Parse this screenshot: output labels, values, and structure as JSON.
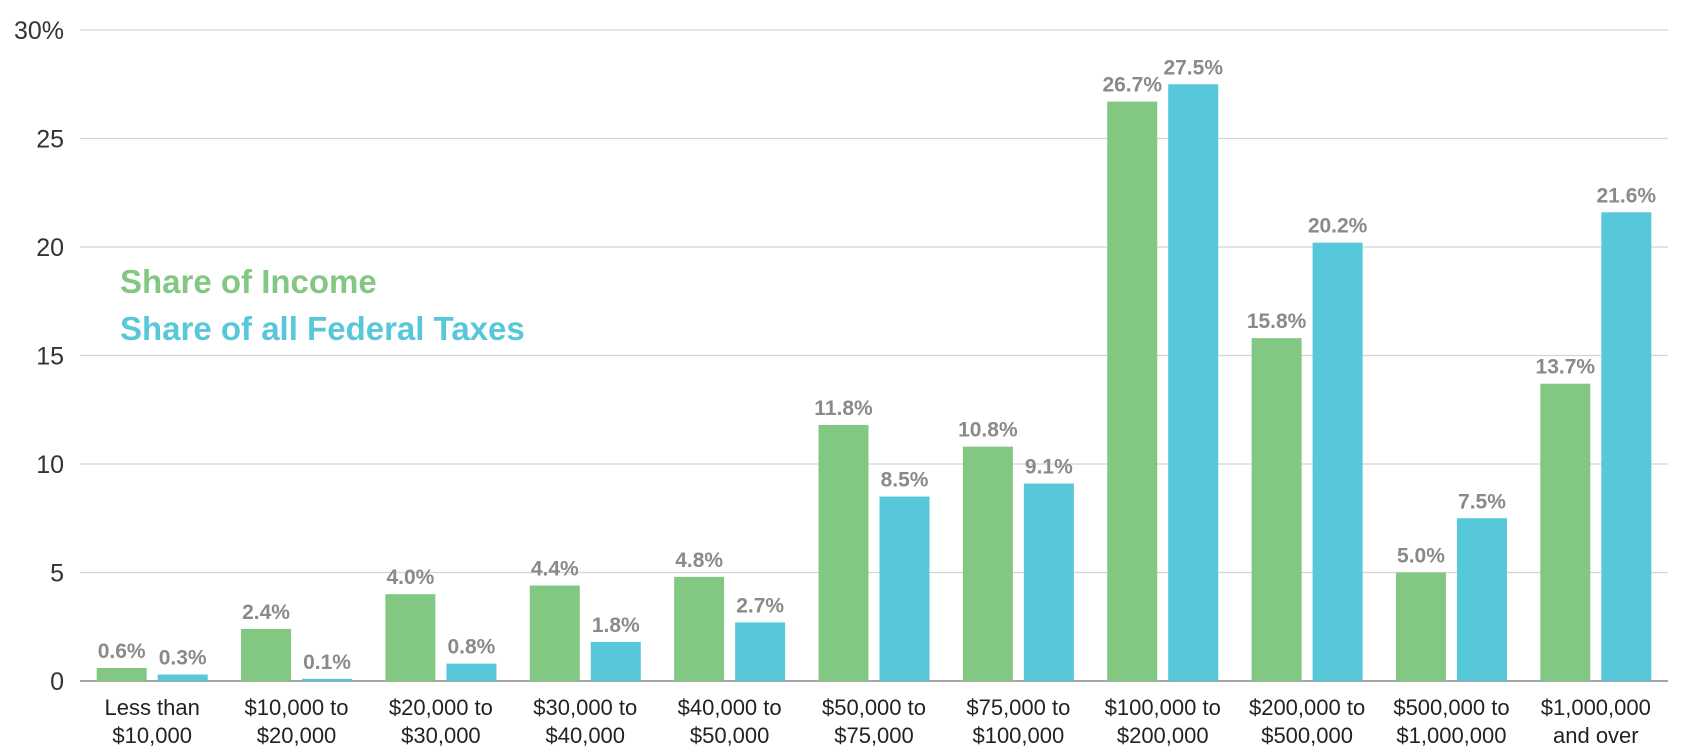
{
  "chart_data": {
    "type": "bar",
    "categories": [
      [
        "Less than",
        "$10,000"
      ],
      [
        "$10,000 to",
        "$20,000"
      ],
      [
        "$20,000 to",
        "$30,000"
      ],
      [
        "$30,000 to",
        "$40,000"
      ],
      [
        "$40,000 to",
        "$50,000"
      ],
      [
        "$50,000 to",
        "$75,000"
      ],
      [
        "$75,000 to",
        "$100,000"
      ],
      [
        "$100,000 to",
        "$200,000"
      ],
      [
        "$200,000 to",
        "$500,000"
      ],
      [
        "$500,000 to",
        "$1,000,000"
      ],
      [
        "$1,000,000",
        "and over"
      ]
    ],
    "series": [
      {
        "name": "Share of Income",
        "color": "#82c883",
        "values": [
          0.6,
          2.4,
          4.0,
          4.4,
          4.8,
          11.8,
          10.8,
          26.7,
          15.8,
          5.0,
          13.7
        ],
        "labels": [
          "0.6%",
          "2.4%",
          "4.0%",
          "4.4%",
          "4.8%",
          "11.8%",
          "10.8%",
          "26.7%",
          "15.8%",
          "5.0%",
          "13.7%"
        ]
      },
      {
        "name": "Share of all Federal Taxes",
        "color": "#57c7da",
        "values": [
          0.3,
          0.1,
          0.8,
          1.8,
          2.7,
          8.5,
          9.1,
          27.5,
          20.2,
          7.5,
          21.6
        ],
        "labels": [
          "0.3%",
          "0.1%",
          "0.8%",
          "1.8%",
          "2.7%",
          "8.5%",
          "9.1%",
          "27.5%",
          "20.2%",
          "7.5%",
          "21.6%"
        ]
      }
    ],
    "y_ticks": [
      "0",
      "5",
      "10",
      "15",
      "20",
      "25",
      "30%"
    ],
    "y_tick_values": [
      0,
      5,
      10,
      15,
      20,
      25,
      30
    ],
    "ylim": [
      0,
      30
    ],
    "grid": true,
    "legend_position": "left"
  }
}
